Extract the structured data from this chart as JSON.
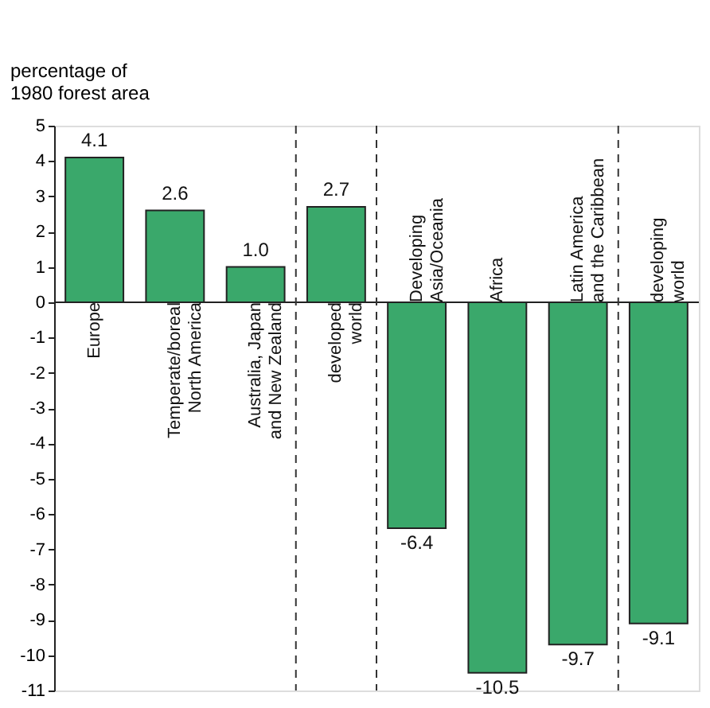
{
  "chart_data": {
    "type": "bar",
    "ylabel": "percentage of\n1980 forest area",
    "categories": [
      "Europe",
      "Temperate/boreal\nNorth America",
      "Australia, Japan\nand New Zealand",
      "developed\nworld",
      "Developing\nAsia/Oceania",
      "Africa",
      "Latin America\nand the Caribbean",
      "developing\nworld"
    ],
    "values": [
      4.1,
      2.6,
      1.0,
      2.7,
      -6.4,
      -10.5,
      -9.7,
      -9.1
    ],
    "color": "#3aa86b",
    "ylim": [
      -11,
      5
    ],
    "yticks": [
      -11,
      -10,
      -9,
      -8,
      -7,
      -6,
      -5,
      -4,
      -3,
      -2,
      -1,
      0,
      1,
      2,
      3,
      4,
      5
    ],
    "grid": false,
    "value_labels": [
      "4.1",
      "2.6",
      "1.0",
      "2.7",
      "-6.4",
      "-10.5",
      "-9.7",
      "-9.1"
    ]
  }
}
